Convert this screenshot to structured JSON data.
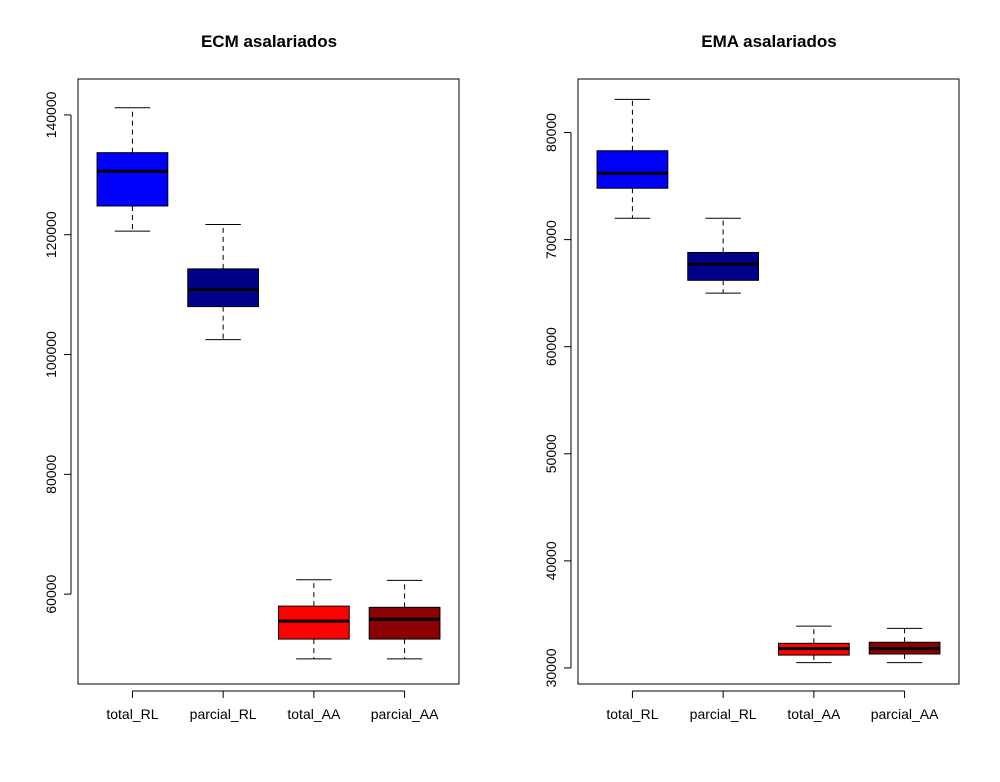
{
  "chart_data": [
    {
      "type": "boxplot",
      "title": "ECM asalariados",
      "xlabel": "",
      "ylabel": "",
      "categories": [
        "total_RL",
        "parcial_RL",
        "total_AA",
        "parcial_AA"
      ],
      "ylim": [
        45000,
        146000
      ],
      "yticks": [
        60000,
        80000,
        100000,
        120000,
        140000
      ],
      "ytick_labels": [
        "60000",
        "80000",
        "100000",
        "120000",
        "140000"
      ],
      "boxes": [
        {
          "category": "total_RL",
          "color": "#0000FF",
          "whisker_low": 120600,
          "q1": 124800,
          "median": 130600,
          "q3": 133700,
          "whisker_high": 141200
        },
        {
          "category": "parcial_RL",
          "color": "#00008B",
          "whisker_low": 102500,
          "q1": 108000,
          "median": 110900,
          "q3": 114300,
          "whisker_high": 121700
        },
        {
          "category": "total_AA",
          "color": "#FF0000",
          "whisker_low": 49200,
          "q1": 52500,
          "median": 55500,
          "q3": 58000,
          "whisker_high": 62400
        },
        {
          "category": "parcial_AA",
          "color": "#8B0000",
          "whisker_low": 49200,
          "q1": 52500,
          "median": 55800,
          "q3": 57800,
          "whisker_high": 62300
        }
      ]
    },
    {
      "type": "boxplot",
      "title": "EMA asalariados",
      "xlabel": "",
      "ylabel": "",
      "categories": [
        "total_RL",
        "parcial_RL",
        "total_AA",
        "parcial_AA"
      ],
      "ylim": [
        28500,
        85000
      ],
      "yticks": [
        30000,
        40000,
        50000,
        60000,
        70000,
        80000
      ],
      "ytick_labels": [
        "30000",
        "40000",
        "50000",
        "60000",
        "70000",
        "80000"
      ],
      "boxes": [
        {
          "category": "total_RL",
          "color": "#0000FF",
          "whisker_low": 72000,
          "q1": 74800,
          "median": 76200,
          "q3": 78300,
          "whisker_high": 83100
        },
        {
          "category": "parcial_RL",
          "color": "#00008B",
          "whisker_low": 65000,
          "q1": 66200,
          "median": 67700,
          "q3": 68800,
          "whisker_high": 72000
        },
        {
          "category": "total_AA",
          "color": "#FF0000",
          "whisker_low": 30500,
          "q1": 31200,
          "median": 31800,
          "q3": 32300,
          "whisker_high": 33900
        },
        {
          "category": "parcial_AA",
          "color": "#8B0000",
          "whisker_low": 30500,
          "q1": 31300,
          "median": 31800,
          "q3": 32400,
          "whisker_high": 33700
        }
      ]
    }
  ]
}
